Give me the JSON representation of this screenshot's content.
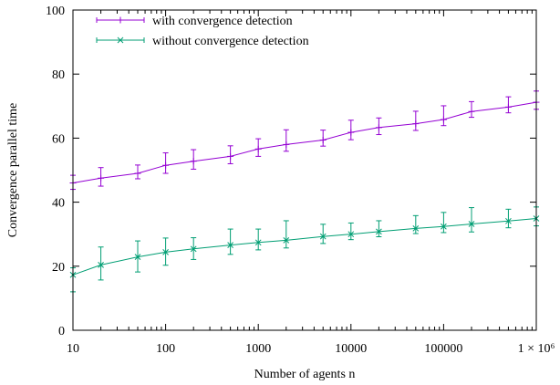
{
  "chart_data": {
    "type": "line",
    "xscale": "log",
    "x": [
      10,
      20,
      50,
      100,
      200,
      500,
      1000,
      2000,
      5000,
      10000,
      20000,
      50000,
      100000,
      200000,
      500000,
      1000000
    ],
    "xticks": [
      10,
      100,
      1000,
      10000,
      100000,
      1000000
    ],
    "xtick_labels": [
      "10",
      "100",
      "1000",
      "10000",
      "100000",
      "1 × 10⁶"
    ],
    "xlim": [
      10,
      1000000
    ],
    "yticks": [
      0,
      20,
      40,
      60,
      80,
      100
    ],
    "ytick_labels": [
      "0",
      "20",
      "40",
      "60",
      "80",
      "100"
    ],
    "ylim": [
      0,
      100
    ],
    "xlabel": "Number of agents n",
    "ylabel": "Convergence parallel time",
    "legend_position": "top-left",
    "series": [
      {
        "name": "with convergence detection",
        "color": "#9400d3",
        "marker": "plus",
        "values": [
          46.0,
          47.5,
          49.0,
          51.5,
          52.8,
          54.3,
          56.6,
          58.0,
          59.4,
          61.8,
          63.3,
          64.5,
          65.8,
          68.3,
          69.7,
          71.2
        ],
        "err_low": [
          44.0,
          45.0,
          47.3,
          49.0,
          50.3,
          52.0,
          54.3,
          55.9,
          57.5,
          59.5,
          61.1,
          62.4,
          63.9,
          66.5,
          67.9,
          69.0
        ],
        "err_high": [
          48.4,
          50.8,
          51.6,
          55.4,
          56.4,
          57.6,
          59.8,
          62.6,
          62.5,
          65.6,
          66.3,
          68.4,
          70.1,
          71.4,
          72.9,
          74.7
        ]
      },
      {
        "name": "without convergence detection",
        "color": "#009e73",
        "marker": "x",
        "values": [
          17.3,
          20.4,
          22.9,
          24.4,
          25.4,
          26.6,
          27.4,
          28.1,
          29.3,
          30.0,
          30.8,
          31.8,
          32.4,
          33.2,
          34.1,
          34.9
        ],
        "err_low": [
          12.0,
          15.7,
          18.2,
          20.3,
          22.1,
          23.7,
          25.1,
          25.7,
          27.1,
          28.3,
          29.2,
          30.2,
          30.5,
          30.7,
          32.0,
          32.6
        ],
        "err_high": [
          19.5,
          26.0,
          27.9,
          28.8,
          28.9,
          31.6,
          31.6,
          34.2,
          33.1,
          33.5,
          34.2,
          35.8,
          36.8,
          38.3,
          37.8,
          38.5
        ]
      }
    ]
  }
}
